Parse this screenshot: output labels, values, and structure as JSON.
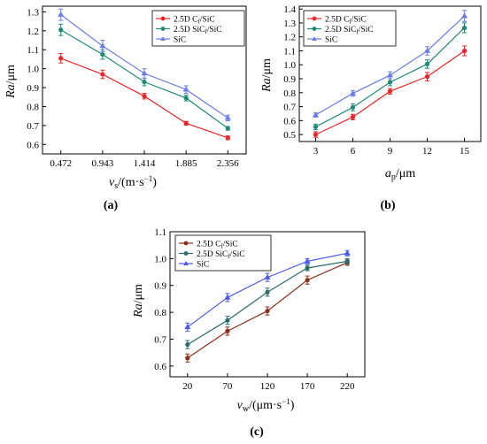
{
  "panels": {
    "a": "(a)",
    "b": "(b)",
    "c": "(c)"
  },
  "colors": {
    "cf": "#e8272a",
    "sicf": "#1e8a78",
    "sic": "#6b7de8",
    "c_cf": "#8b2e1a",
    "c_sicf": "#2a6b6a",
    "c_sic": "#4a5ae8"
  },
  "chart_data": [
    {
      "type": "line",
      "panel": "a",
      "x": [
        "0.472",
        "0.943",
        "1.414",
        "1.885",
        "2.356"
      ],
      "xlabel_main": "v",
      "xlabel_sub": "s",
      "xlabel_rest": "/(m·s",
      "xlabel_sup": "−1",
      "xlabel_end": ")",
      "ylabel_main": "Ra",
      "ylabel_rest": "/μm",
      "ylim": [
        0.55,
        1.33
      ],
      "yticks": [
        "0.6",
        "0.7",
        "0.8",
        "0.9",
        "1.0",
        "1.1",
        "1.2",
        "1.3"
      ],
      "legend": "top-right",
      "series": [
        {
          "name": "2.5D C",
          "sub": "f",
          "rest": "/SiC",
          "values": [
            1.055,
            0.97,
            0.855,
            0.712,
            0.635
          ],
          "err": [
            0.025,
            0.022,
            0.015,
            0.01,
            0.01
          ]
        },
        {
          "name": "2.5D SiC",
          "sub": "f",
          "rest": "/SiC",
          "values": [
            1.205,
            1.075,
            0.93,
            0.845,
            0.685
          ],
          "err": [
            0.03,
            0.025,
            0.02,
            0.015,
            0.01
          ]
        },
        {
          "name": "SiC",
          "sub": "",
          "rest": "",
          "values": [
            1.285,
            1.12,
            0.975,
            0.89,
            0.74
          ],
          "err": [
            0.03,
            0.03,
            0.025,
            0.02,
            0.015
          ]
        }
      ]
    },
    {
      "type": "line",
      "panel": "b",
      "x": [
        "3",
        "6",
        "9",
        "12",
        "15"
      ],
      "xlabel_main": "a",
      "xlabel_sub": "p",
      "xlabel_rest": "/μm",
      "ylabel_main": "Ra",
      "ylabel_rest": "/μm",
      "ylim": [
        0.45,
        1.42
      ],
      "yticks": [
        "0.5",
        "0.6",
        "0.7",
        "0.8",
        "0.9",
        "1.0",
        "1.1",
        "1.2",
        "1.3",
        "1.4"
      ],
      "legend": "top-left",
      "series": [
        {
          "name": "2.5D C",
          "sub": "f",
          "rest": "/SiC",
          "values": [
            0.5,
            0.625,
            0.81,
            0.915,
            1.1
          ],
          "err": [
            0.02,
            0.02,
            0.02,
            0.03,
            0.035
          ]
        },
        {
          "name": "2.5D SiC",
          "sub": "f",
          "rest": "/SiC",
          "values": [
            0.555,
            0.695,
            0.875,
            1.005,
            1.265
          ],
          "err": [
            0.02,
            0.025,
            0.025,
            0.03,
            0.035
          ]
        },
        {
          "name": "SiC",
          "sub": "",
          "rest": "",
          "values": [
            0.64,
            0.795,
            0.925,
            1.1,
            1.35
          ],
          "err": [
            0.015,
            0.02,
            0.025,
            0.03,
            0.04
          ]
        }
      ]
    },
    {
      "type": "line",
      "panel": "c",
      "x": [
        "20",
        "70",
        "120",
        "170",
        "220"
      ],
      "xlabel_main": "v",
      "xlabel_sub": "w",
      "xlabel_rest": "/(μm·s",
      "xlabel_sup": "−1",
      "xlabel_end": ")",
      "ylabel_main": "Ra",
      "ylabel_rest": "/μm",
      "ylim": [
        0.56,
        1.1
      ],
      "yticks": [
        "0.6",
        "0.7",
        "0.8",
        "0.9",
        "1.0",
        "1.1"
      ],
      "legend": "top-left",
      "series": [
        {
          "name": "2.5D C",
          "sub": "f",
          "rest": "/SiC",
          "values": [
            0.63,
            0.73,
            0.805,
            0.92,
            0.985
          ],
          "err": [
            0.015,
            0.015,
            0.015,
            0.015,
            0.01
          ]
        },
        {
          "name": "2.5D SiC",
          "sub": "f",
          "rest": "/SiC",
          "values": [
            0.68,
            0.77,
            0.875,
            0.965,
            0.99
          ],
          "err": [
            0.015,
            0.015,
            0.015,
            0.01,
            0.01
          ]
        },
        {
          "name": "SiC",
          "sub": "",
          "rest": "",
          "values": [
            0.745,
            0.855,
            0.93,
            0.99,
            1.02
          ],
          "err": [
            0.015,
            0.015,
            0.015,
            0.01,
            0.01
          ]
        }
      ]
    }
  ]
}
